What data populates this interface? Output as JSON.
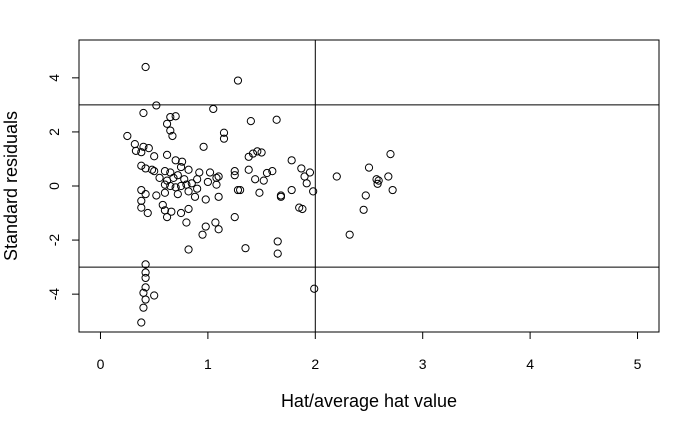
{
  "chart_data": {
    "type": "scatter",
    "xlabel": "Hat/average hat value",
    "ylabel": "Standard residuals",
    "xlim": [
      -0.2,
      5.2
    ],
    "ylim": [
      -5.4,
      5.4
    ],
    "x_ticks": [
      0,
      1,
      2,
      3,
      4,
      5
    ],
    "x_tick_labels": [
      "0",
      "1",
      "2",
      "3",
      "4",
      "5"
    ],
    "y_ticks": [
      -4,
      -2,
      0,
      2,
      4
    ],
    "y_tick_labels": [
      "-4",
      "-2",
      "0",
      "2",
      "4"
    ],
    "reference_lines": {
      "vertical_x": [
        2
      ],
      "horizontal_y": [
        3,
        -3
      ]
    },
    "grid": false,
    "legend": "none",
    "point_style": "open-circle",
    "point_color": "#000000",
    "points": [
      [
        0.42,
        4.4
      ],
      [
        1.28,
        3.9
      ],
      [
        0.52,
        2.98
      ],
      [
        1.05,
        2.85
      ],
      [
        0.4,
        2.7
      ],
      [
        0.65,
        2.55
      ],
      [
        0.7,
        2.58
      ],
      [
        0.62,
        2.3
      ],
      [
        1.4,
        2.4
      ],
      [
        1.64,
        2.45
      ],
      [
        0.65,
        2.05
      ],
      [
        1.15,
        1.97
      ],
      [
        0.67,
        1.85
      ],
      [
        1.15,
        1.75
      ],
      [
        0.25,
        1.85
      ],
      [
        0.32,
        1.55
      ],
      [
        0.4,
        1.45
      ],
      [
        0.45,
        1.4
      ],
      [
        0.33,
        1.3
      ],
      [
        0.38,
        1.25
      ],
      [
        0.5,
        1.1
      ],
      [
        0.62,
        1.15
      ],
      [
        0.7,
        0.95
      ],
      [
        0.76,
        0.9
      ],
      [
        0.96,
        1.45
      ],
      [
        1.38,
        1.08
      ],
      [
        1.42,
        1.2
      ],
      [
        1.46,
        1.28
      ],
      [
        1.5,
        1.24
      ],
      [
        1.78,
        0.95
      ],
      [
        0.38,
        0.75
      ],
      [
        0.42,
        0.65
      ],
      [
        0.48,
        0.6
      ],
      [
        0.5,
        0.55
      ],
      [
        0.6,
        0.55
      ],
      [
        0.65,
        0.5
      ],
      [
        0.75,
        0.7
      ],
      [
        0.82,
        0.6
      ],
      [
        0.92,
        0.5
      ],
      [
        1.02,
        0.5
      ],
      [
        1.25,
        0.55
      ],
      [
        1.38,
        0.6
      ],
      [
        1.55,
        0.48
      ],
      [
        1.6,
        0.55
      ],
      [
        1.87,
        0.65
      ],
      [
        0.55,
        0.3
      ],
      [
        0.62,
        0.2
      ],
      [
        0.68,
        0.3
      ],
      [
        0.72,
        0.4
      ],
      [
        0.78,
        0.25
      ],
      [
        0.85,
        0.1
      ],
      [
        0.9,
        0.25
      ],
      [
        1.0,
        0.15
      ],
      [
        1.08,
        0.3
      ],
      [
        1.1,
        0.35
      ],
      [
        1.25,
        0.4
      ],
      [
        1.44,
        0.25
      ],
      [
        1.52,
        0.2
      ],
      [
        1.9,
        0.35
      ],
      [
        1.95,
        0.5
      ],
      [
        0.6,
        0.05
      ],
      [
        0.65,
        0.0
      ],
      [
        0.7,
        -0.05
      ],
      [
        0.75,
        0.0
      ],
      [
        0.8,
        0.05
      ],
      [
        0.9,
        -0.1
      ],
      [
        1.08,
        0.05
      ],
      [
        1.28,
        -0.15
      ],
      [
        1.48,
        -0.25
      ],
      [
        1.68,
        -0.35
      ],
      [
        1.78,
        -0.15
      ],
      [
        1.92,
        0.1
      ],
      [
        1.98,
        -0.2
      ],
      [
        0.38,
        -0.15
      ],
      [
        0.42,
        -0.3
      ],
      [
        0.52,
        -0.35
      ],
      [
        0.6,
        -0.25
      ],
      [
        0.72,
        -0.3
      ],
      [
        0.82,
        -0.2
      ],
      [
        0.88,
        -0.4
      ],
      [
        0.98,
        -0.5
      ],
      [
        1.1,
        -0.4
      ],
      [
        1.3,
        -0.15
      ],
      [
        1.68,
        -0.4
      ],
      [
        1.85,
        -0.8
      ],
      [
        0.38,
        -0.55
      ],
      [
        0.38,
        -0.8
      ],
      [
        0.44,
        -1.0
      ],
      [
        0.58,
        -0.7
      ],
      [
        0.6,
        -0.9
      ],
      [
        0.66,
        -0.95
      ],
      [
        0.75,
        -1.0
      ],
      [
        0.82,
        -0.85
      ],
      [
        0.62,
        -1.15
      ],
      [
        0.8,
        -1.35
      ],
      [
        0.98,
        -1.5
      ],
      [
        1.07,
        -1.35
      ],
      [
        1.1,
        -1.6
      ],
      [
        0.95,
        -1.8
      ],
      [
        1.25,
        -1.15
      ],
      [
        0.82,
        -2.35
      ],
      [
        1.35,
        -2.3
      ],
      [
        1.65,
        -2.05
      ],
      [
        1.65,
        -2.5
      ],
      [
        1.99,
        -3.8
      ],
      [
        0.42,
        -2.9
      ],
      [
        0.42,
        -3.2
      ],
      [
        0.42,
        -3.4
      ],
      [
        0.42,
        -3.75
      ],
      [
        0.4,
        -3.95
      ],
      [
        0.42,
        -4.2
      ],
      [
        0.5,
        -4.05
      ],
      [
        0.4,
        -4.5
      ],
      [
        0.38,
        -5.05
      ],
      [
        1.88,
        -0.85
      ],
      [
        2.2,
        0.35
      ],
      [
        2.32,
        -1.8
      ],
      [
        2.45,
        -0.88
      ],
      [
        2.47,
        -0.35
      ],
      [
        2.5,
        0.68
      ],
      [
        2.57,
        0.25
      ],
      [
        2.58,
        0.08
      ],
      [
        2.59,
        0.2
      ],
      [
        2.68,
        0.35
      ],
      [
        2.7,
        1.18
      ],
      [
        2.72,
        -0.15
      ]
    ]
  }
}
